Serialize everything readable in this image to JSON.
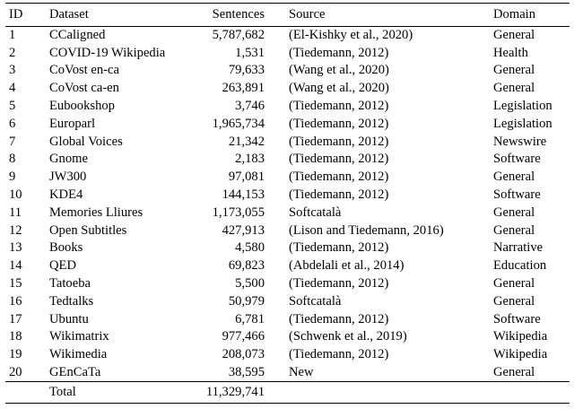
{
  "table": {
    "columns": [
      "ID",
      "Dataset",
      "Sentences",
      "Source",
      "Domain"
    ],
    "rows": [
      {
        "id": "1",
        "dataset": "CCaligned",
        "sentences": "5,787,682",
        "source": "(El-Kishky et al., 2020)",
        "domain": "General"
      },
      {
        "id": "2",
        "dataset": "COVID-19 Wikipedia",
        "sentences": "1,531",
        "source": "(Tiedemann, 2012)",
        "domain": "Health"
      },
      {
        "id": "3",
        "dataset": "CoVost en-ca",
        "sentences": "79,633",
        "source": "(Wang et al., 2020)",
        "domain": "General"
      },
      {
        "id": "4",
        "dataset": "CoVost ca-en",
        "sentences": "263,891",
        "source": "(Wang et al., 2020)",
        "domain": "General"
      },
      {
        "id": "5",
        "dataset": "Eubookshop",
        "sentences": "3,746",
        "source": "(Tiedemann, 2012)",
        "domain": "Legislation"
      },
      {
        "id": "6",
        "dataset": "Europarl",
        "sentences": "1,965,734",
        "source": "(Tiedemann, 2012)",
        "domain": "Legislation"
      },
      {
        "id": "7",
        "dataset": "Global Voices",
        "sentences": "21,342",
        "source": "(Tiedemann, 2012)",
        "domain": "Newswire"
      },
      {
        "id": "8",
        "dataset": "Gnome",
        "sentences": "2,183",
        "source": "(Tiedemann, 2012)",
        "domain": "Software"
      },
      {
        "id": "9",
        "dataset": "JW300",
        "sentences": "97,081",
        "source": "(Tiedemann, 2012)",
        "domain": "General"
      },
      {
        "id": "10",
        "dataset": "KDE4",
        "sentences": "144,153",
        "source": "(Tiedemann, 2012)",
        "domain": "Software"
      },
      {
        "id": "11",
        "dataset": "Memories Lliures",
        "sentences": "1,173,055",
        "source": "Softcatalà",
        "domain": "General"
      },
      {
        "id": "12",
        "dataset": "Open Subtitles",
        "sentences": "427,913",
        "source": "(Lison and Tiedemann, 2016)",
        "domain": "General"
      },
      {
        "id": "13",
        "dataset": "Books",
        "sentences": "4,580",
        "source": "(Tiedemann, 2012)",
        "domain": "Narrative"
      },
      {
        "id": "14",
        "dataset": "QED",
        "sentences": "69,823",
        "source": "(Abdelali et al., 2014)",
        "domain": "Education"
      },
      {
        "id": "15",
        "dataset": "Tatoeba",
        "sentences": "5,500",
        "source": "(Tiedemann, 2012)",
        "domain": "General"
      },
      {
        "id": "16",
        "dataset": "Tedtalks",
        "sentences": "50,979",
        "source": "Softcatalà",
        "domain": "General"
      },
      {
        "id": "17",
        "dataset": "Ubuntu",
        "sentences": "6,781",
        "source": "(Tiedemann, 2012)",
        "domain": "Software"
      },
      {
        "id": "18",
        "dataset": "Wikimatrix",
        "sentences": "977,466",
        "source": "(Schwenk et al., 2019)",
        "domain": "Wikipedia"
      },
      {
        "id": "19",
        "dataset": "Wikimedia",
        "sentences": "208,073",
        "source": "(Tiedemann, 2012)",
        "domain": "Wikipedia"
      },
      {
        "id": "20",
        "dataset": "GEnCaTa",
        "sentences": "38,595",
        "source": "New",
        "domain": "General"
      }
    ],
    "footer": {
      "label": "Total",
      "sentences": "11,329,741"
    }
  }
}
